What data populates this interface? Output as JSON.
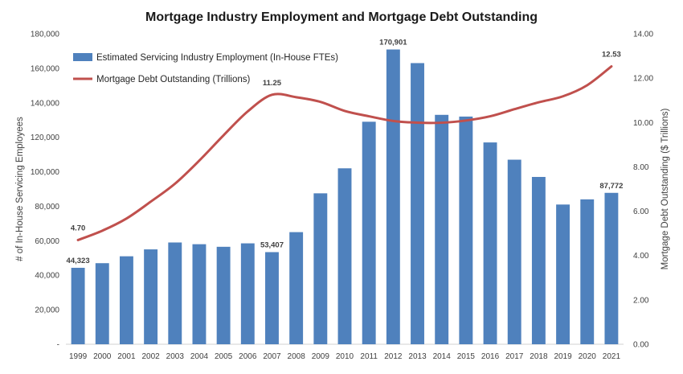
{
  "chart_data": {
    "type": "bar",
    "title": "Mortgage Industry Employment and Mortgage Debt Outstanding",
    "xlabel": "",
    "ylabel": "# of In-House Servicing Employees",
    "y2label": "Mortgage Debt Outstanding ($ Trillions)",
    "ylim": [
      0,
      180000
    ],
    "y2lim": [
      0,
      14
    ],
    "yticks": [
      "-",
      "20,000",
      "40,000",
      "60,000",
      "80,000",
      "100,000",
      "120,000",
      "140,000",
      "160,000",
      "180,000"
    ],
    "y2ticks": [
      "0.00",
      "2.00",
      "4.00",
      "6.00",
      "8.00",
      "10.00",
      "12.00",
      "14.00"
    ],
    "categories": [
      "1999",
      "2000",
      "2001",
      "2002",
      "2003",
      "2004",
      "2005",
      "2006",
      "2007",
      "2008",
      "2009",
      "2010",
      "2011",
      "2012",
      "2013",
      "2014",
      "2015",
      "2016",
      "2017",
      "2018",
      "2019",
      "2020",
      "2021"
    ],
    "legend_position": "top-left",
    "grid": false,
    "series": [
      {
        "name": "Estimated Servicing Industry Employment (In-House FTEs)",
        "type": "bar",
        "axis": "left",
        "color": "#4f81bd",
        "values": [
          44323,
          47000,
          51000,
          55000,
          59000,
          58000,
          56500,
          58500,
          53407,
          65000,
          87500,
          102000,
          129000,
          170901,
          163000,
          133000,
          132000,
          117000,
          107000,
          97000,
          81000,
          84000,
          87772
        ]
      },
      {
        "name": "Mortgage Debt Outstanding (Trillions)",
        "type": "line",
        "axis": "right",
        "color": "#c0504d",
        "values": [
          4.7,
          5.12,
          5.67,
          6.43,
          7.24,
          8.28,
          9.42,
          10.5,
          11.25,
          11.14,
          10.93,
          10.52,
          10.28,
          10.07,
          9.99,
          9.99,
          10.09,
          10.28,
          10.6,
          10.91,
          11.18,
          11.68,
          12.53
        ]
      }
    ],
    "data_labels": [
      {
        "series": 0,
        "index": 0,
        "text": "44,323"
      },
      {
        "series": 0,
        "index": 8,
        "text": "53,407"
      },
      {
        "series": 0,
        "index": 13,
        "text": "170,901"
      },
      {
        "series": 0,
        "index": 22,
        "text": "87,772"
      },
      {
        "series": 1,
        "index": 0,
        "text": "4.70"
      },
      {
        "series": 1,
        "index": 8,
        "text": "11.25"
      },
      {
        "series": 1,
        "index": 22,
        "text": "12.53"
      }
    ]
  }
}
